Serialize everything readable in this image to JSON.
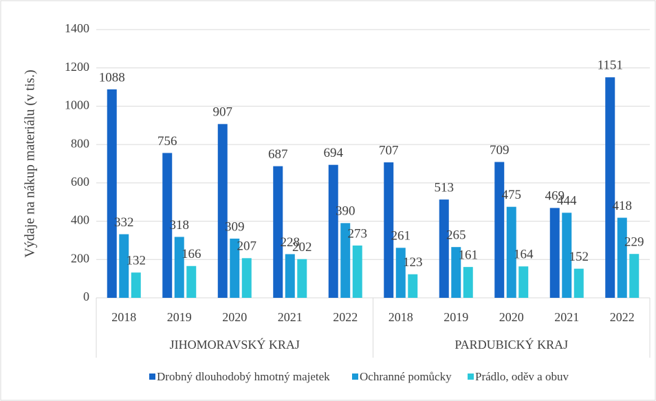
{
  "chart_data": {
    "type": "bar",
    "y_axis_label": "Výdaje na nákup materiálu (v tis.)",
    "groups": [
      {
        "label": "JIHOMORAVSKÝ KRAJ",
        "categories": [
          "2018",
          "2019",
          "2020",
          "2021",
          "2022"
        ]
      },
      {
        "label": "PARDUBICKÝ KRAJ",
        "categories": [
          "2018",
          "2019",
          "2020",
          "2021",
          "2022"
        ]
      }
    ],
    "series": [
      {
        "name": "Drobný dlouhodobý hmotný majetek",
        "color": "#1565c8",
        "values": [
          1088,
          756,
          907,
          687,
          694,
          707,
          513,
          709,
          469,
          1151
        ]
      },
      {
        "name": "Ochranné pomůcky",
        "color": "#1a9ad8",
        "values": [
          332,
          318,
          309,
          228,
          390,
          261,
          265,
          475,
          444,
          418
        ]
      },
      {
        "name": "Prádlo, oděv a obuv",
        "color": "#2cc8da",
        "values": [
          132,
          166,
          207,
          202,
          273,
          123,
          161,
          164,
          152,
          229
        ]
      }
    ],
    "ylim": [
      0,
      1400
    ],
    "yticks": [
      0,
      200,
      400,
      600,
      800,
      1000,
      1200,
      1400
    ],
    "grid": true,
    "legend": "bottom"
  }
}
